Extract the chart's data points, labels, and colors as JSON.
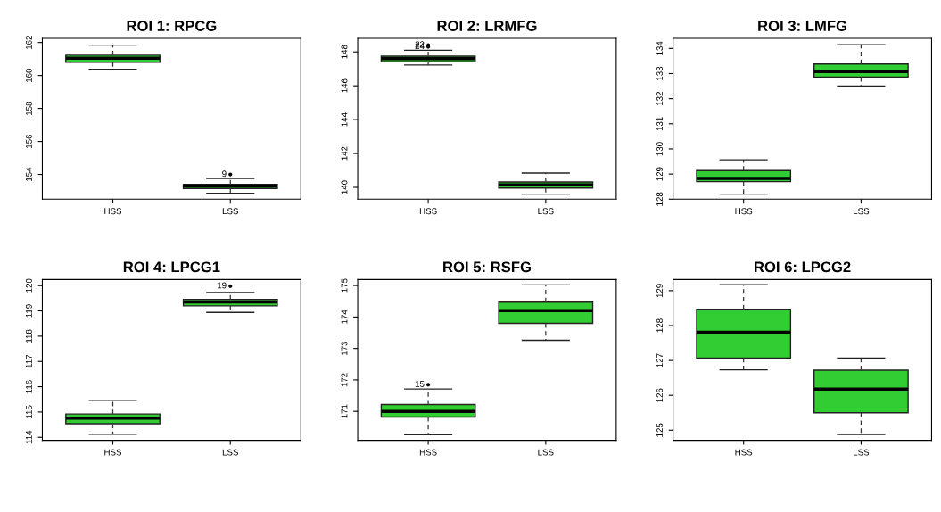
{
  "chart_data": [
    {
      "type": "box",
      "title": "ROI 1: RPCG",
      "categories": [
        "HSS",
        "LSS"
      ],
      "color": "#32cd32",
      "ylim": [
        152.5,
        162.25
      ],
      "yticks": [
        154,
        156,
        158,
        160,
        162
      ],
      "grid": false,
      "boxes": [
        {
          "low": 160.37,
          "q1": 160.8,
          "median": 161.05,
          "q3": 161.23,
          "high": 161.84
        },
        {
          "low": 152.85,
          "q1": 153.15,
          "median": 153.3,
          "q3": 153.4,
          "high": 153.75,
          "outliers": [
            154.0
          ]
        }
      ],
      "annotations": [
        "9"
      ]
    },
    {
      "type": "box",
      "title": "ROI 2: LRMFG",
      "categories": [
        "HSS",
        "LSS"
      ],
      "color": "#32cd32",
      "ylim": [
        139.3,
        148.8
      ],
      "yticks": [
        140,
        142,
        144,
        146,
        148
      ],
      "grid": false,
      "boxes": [
        {
          "low": 147.23,
          "q1": 147.42,
          "median": 147.6,
          "q3": 147.75,
          "high": 148.1,
          "outliers": [
            148.4,
            148.3
          ]
        },
        {
          "low": 139.6,
          "q1": 139.96,
          "median": 140.14,
          "q3": 140.32,
          "high": 140.84
        }
      ],
      "annotations": [
        "22",
        "24"
      ]
    },
    {
      "type": "box",
      "title": "ROI 3: LMFG",
      "categories": [
        "HSS",
        "LSS"
      ],
      "color": "#32cd32",
      "ylim": [
        128.0,
        134.4
      ],
      "yticks": [
        128,
        129,
        130,
        131,
        132,
        133,
        134
      ],
      "grid": false,
      "boxes": [
        {
          "low": 128.2,
          "q1": 128.7,
          "median": 128.83,
          "q3": 129.14,
          "high": 129.57
        },
        {
          "low": 132.5,
          "q1": 132.86,
          "median": 133.08,
          "q3": 133.38,
          "high": 134.15
        }
      ]
    },
    {
      "type": "box",
      "title": "ROI 4: LPCG1",
      "categories": [
        "HSS",
        "LSS"
      ],
      "color": "#32cd32",
      "ylim": [
        113.88,
        120.24
      ],
      "yticks": [
        114,
        115,
        116,
        117,
        118,
        119,
        120
      ],
      "grid": false,
      "boxes": [
        {
          "low": 114.12,
          "q1": 114.54,
          "median": 114.76,
          "q3": 114.92,
          "high": 115.45
        },
        {
          "low": 118.94,
          "q1": 119.2,
          "median": 119.35,
          "q3": 119.45,
          "high": 119.73,
          "outliers": [
            119.98
          ]
        }
      ],
      "annotations": [
        "19"
      ]
    },
    {
      "type": "box",
      "title": "ROI 5: RSFG",
      "categories": [
        "HSS",
        "LSS"
      ],
      "color": "#32cd32",
      "ylim": [
        170.08,
        175.19
      ],
      "yticks": [
        171,
        172,
        173,
        174,
        175
      ],
      "grid": false,
      "boxes": [
        {
          "low": 170.26,
          "q1": 170.82,
          "median": 171.0,
          "q3": 171.22,
          "high": 171.71,
          "outliers": [
            171.85
          ]
        },
        {
          "low": 173.26,
          "q1": 173.8,
          "median": 174.2,
          "q3": 174.47,
          "high": 175.02
        }
      ],
      "annotations": [
        "15"
      ]
    },
    {
      "type": "box",
      "title": "ROI 6: LPCG2",
      "categories": [
        "HSS",
        "LSS"
      ],
      "color": "#32cd32",
      "ylim": [
        124.71,
        129.32
      ],
      "yticks": [
        125,
        126,
        127,
        128,
        129
      ],
      "grid": false,
      "boxes": [
        {
          "low": 126.73,
          "q1": 127.07,
          "median": 127.81,
          "q3": 128.47,
          "high": 129.17
        },
        {
          "low": 124.88,
          "q1": 125.5,
          "median": 126.18,
          "q3": 126.72,
          "high": 127.07
        }
      ]
    }
  ]
}
